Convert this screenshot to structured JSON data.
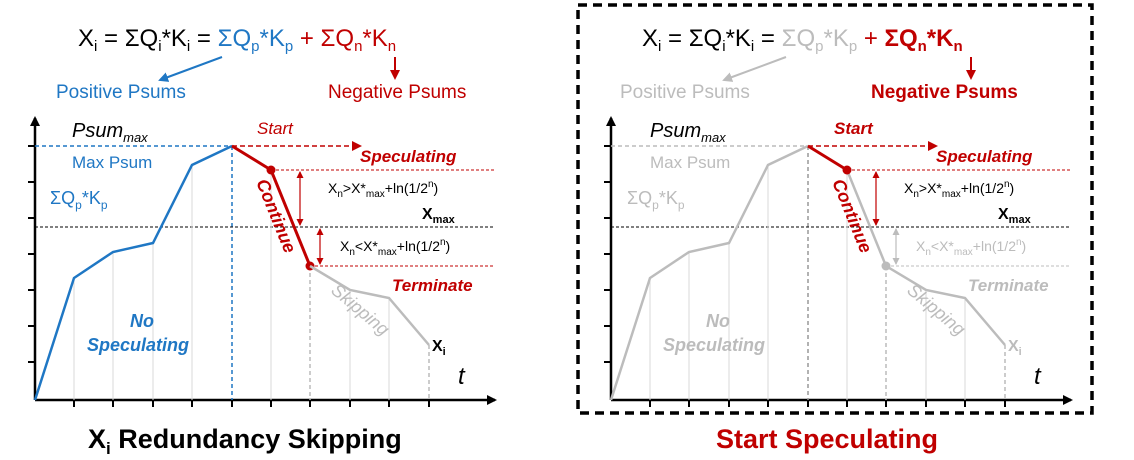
{
  "colors": {
    "blue": "#1f77c4",
    "red": "#c00000",
    "black": "#000000",
    "gray": "#bcbcbc",
    "dashGray": "#999999"
  },
  "left": {
    "formula": {
      "lhs": "X",
      "lhs_sub": "i",
      "eq1": " = ΣQ",
      "eq1_sub1": "i",
      "eq1_mid": "*K",
      "eq1_sub2": "i",
      "eq2": " = ",
      "pos": "ΣQ",
      "pos_sub1": "p",
      "pos_mid": "*K",
      "pos_sub2": "p",
      "plus": " + ",
      "neg": "ΣQ",
      "neg_sub1": "n",
      "neg_mid": "*K",
      "neg_sub2": "n"
    },
    "positive_label": "Positive Psums",
    "negative_label": "Negative Psums",
    "psum_max": "Psum",
    "psum_max_sub": "max",
    "max_psum": "Max Psum",
    "sum_label": "ΣQ",
    "sum_sub1": "p",
    "sum_mid": "*K",
    "sum_sub2": "p",
    "start": "Start",
    "speculating": "Speculating",
    "continue": "Continue",
    "cond_gt": "X",
    "cond_gt_sub": "n",
    "cond_gt_rest": ">X*",
    "cond_gt_sub2": "max",
    "cond_gt_tail": "+ln(1/2",
    "cond_gt_sup": "n",
    "cond_gt_end": ")",
    "xmax": "X",
    "xmax_sub": "max",
    "cond_lt": "X",
    "cond_lt_sub": "n",
    "cond_lt_rest": "<X*",
    "cond_lt_sub2": "max",
    "cond_lt_tail": "+ln(1/2",
    "cond_lt_sup": "n",
    "cond_lt_end": ")",
    "terminate": "Terminate",
    "no": "No",
    "no_speculating": "Speculating",
    "skipping": "Skipping",
    "xi": "X",
    "xi_sub": "i",
    "t": "t",
    "caption": "X",
    "caption_sub": "i",
    "caption_rest": " Redundancy Skipping"
  },
  "right": {
    "caption": "Start Speculating"
  }
}
